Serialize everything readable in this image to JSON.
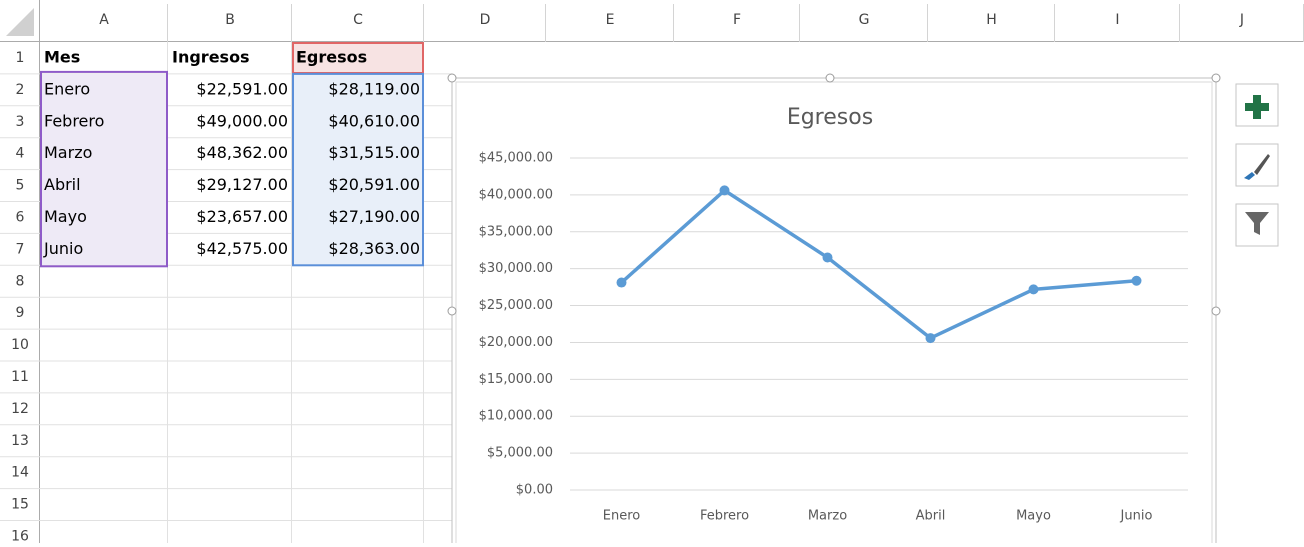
{
  "spreadsheet": {
    "columns": [
      "A",
      "B",
      "C",
      "D",
      "E",
      "F",
      "G",
      "H",
      "I",
      "J"
    ],
    "rows": [
      1,
      2,
      3,
      4,
      5,
      6,
      7,
      8,
      9,
      10,
      11,
      12,
      13,
      14,
      15,
      16
    ],
    "cells": [
      [
        "Mes",
        "Ingresos",
        "Egresos"
      ],
      [
        "Enero",
        "$22,591.00",
        "$28,119.00"
      ],
      [
        "Febrero",
        "$49,000.00",
        "$40,610.00"
      ],
      [
        "Marzo",
        "$48,362.00",
        "$31,515.00"
      ],
      [
        "Abril",
        "$29,127.00",
        "$20,591.00"
      ],
      [
        "Mayo",
        "$23,657.00",
        "$27,190.00"
      ],
      [
        "Junio",
        "$42,575.00",
        "$28,363.00"
      ]
    ]
  },
  "chart_data": {
    "type": "line",
    "title": "Egresos",
    "categories": [
      "Enero",
      "Febrero",
      "Marzo",
      "Abril",
      "Mayo",
      "Junio"
    ],
    "values": [
      28119,
      40610,
      31515,
      20591,
      27190,
      28363
    ],
    "color": "#5b9bd5",
    "ylim": [
      0,
      45000
    ],
    "yticks": [
      {
        "value": 0,
        "label": "$0.00"
      },
      {
        "value": 5000,
        "label": "$5,000.00"
      },
      {
        "value": 10000,
        "label": "$10,000.00"
      },
      {
        "value": 15000,
        "label": "$15,000.00"
      },
      {
        "value": 20000,
        "label": "$20,000.00"
      },
      {
        "value": 25000,
        "label": "$25,000.00"
      },
      {
        "value": 30000,
        "label": "$30,000.00"
      },
      {
        "value": 35000,
        "label": "$35,000.00"
      },
      {
        "value": 40000,
        "label": "$40,000.00"
      },
      {
        "value": 45000,
        "label": "$45,000.00"
      }
    ],
    "grid": true
  }
}
